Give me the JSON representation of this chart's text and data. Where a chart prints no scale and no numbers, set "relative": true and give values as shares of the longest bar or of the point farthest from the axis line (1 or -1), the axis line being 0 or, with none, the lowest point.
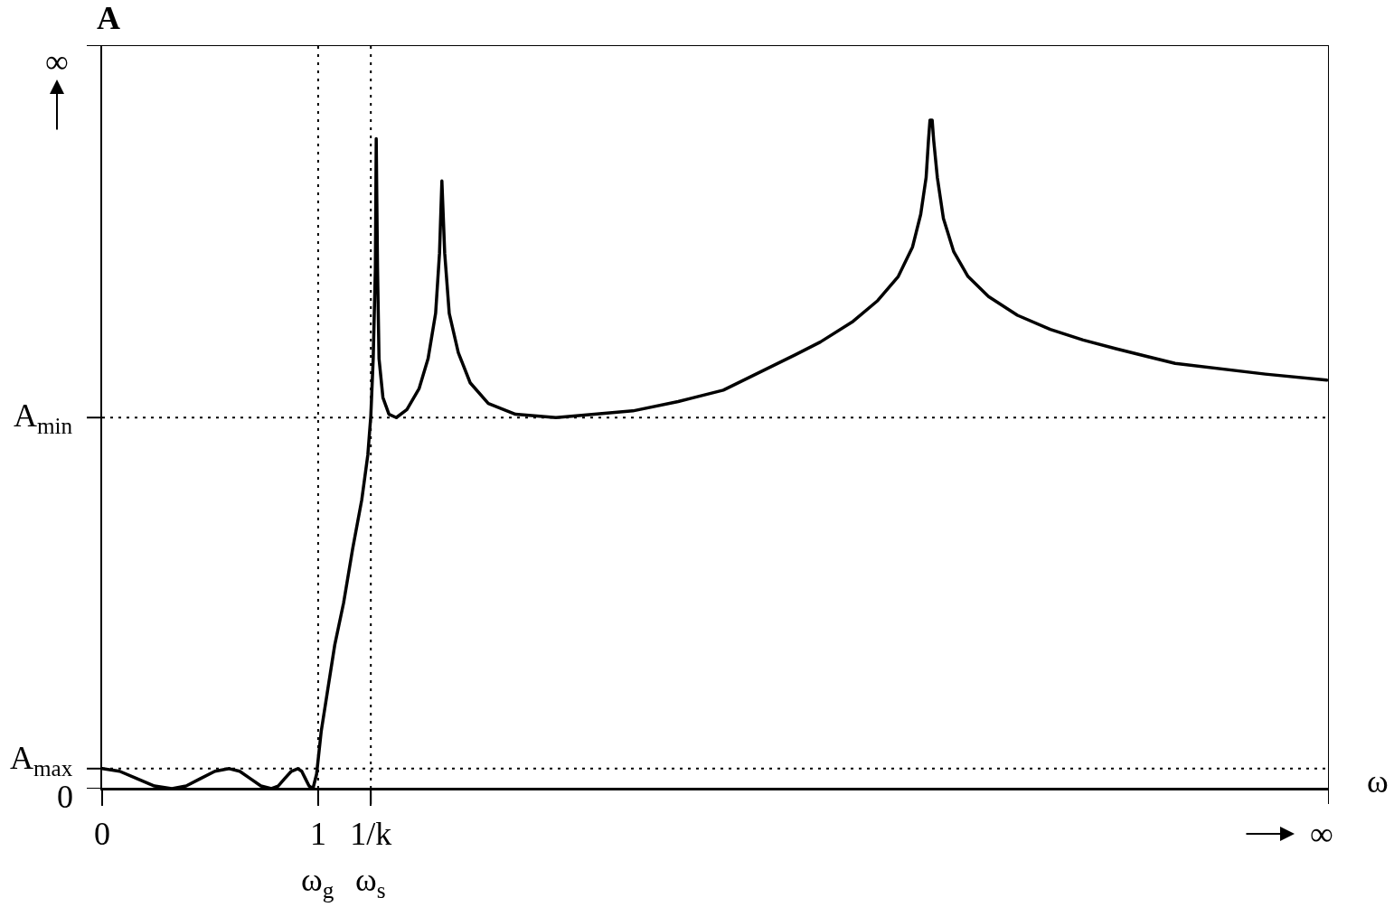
{
  "chart_data": {
    "type": "line",
    "relative": true,
    "tick_labels": "x",
    "xlabel": "ω",
    "ylabel": "A",
    "x": [
      0,
      0.081,
      0.161,
      0.242,
      0.323,
      0.389,
      0.455,
      0.522,
      0.588,
      0.637,
      0.686,
      0.735,
      0.784,
      0.815,
      0.845,
      0.876,
      0.906,
      0.924,
      0.941,
      0.958,
      0.976,
      0.993,
      1.014,
      1.042,
      1.077,
      1.118,
      1.16,
      1.202,
      1.23,
      1.244,
      1.255,
      1.265,
      1.269,
      1.275,
      1.282,
      1.3,
      1.328,
      1.362,
      1.411,
      1.467,
      1.509,
      1.544,
      1.562,
      1.573,
      1.586,
      1.607,
      1.649,
      1.704,
      1.788,
      1.914,
      2.101,
      2.457,
      2.667,
      2.876,
      3.21,
      3.325,
      3.477,
      3.591,
      3.686,
      3.752,
      3.79,
      3.815,
      3.826,
      3.833,
      3.843,
      3.85,
      3.867,
      3.895,
      3.943,
      4.009,
      4.104,
      4.238,
      4.39,
      4.542,
      4.694,
      4.968,
      5.386,
      5.67
    ],
    "series": [
      {
        "color": "#000000",
        "values": [
          0.03,
          0.026,
          0.015,
          0.004,
          0,
          0.004,
          0.015,
          0.026,
          0.03,
          0.026,
          0.015,
          0.004,
          0,
          0.004,
          0.015,
          0.026,
          0.03,
          0.026,
          0.015,
          0.004,
          0,
          0.022,
          0.085,
          0.143,
          0.215,
          0.278,
          0.359,
          0.432,
          0.499,
          0.558,
          0.643,
          0.778,
          0.972,
          0.778,
          0.643,
          0.585,
          0.56,
          0.555,
          0.567,
          0.598,
          0.643,
          0.711,
          0.801,
          0.909,
          0.801,
          0.711,
          0.652,
          0.607,
          0.576,
          0.56,
          0.555,
          0.565,
          0.579,
          0.596,
          0.649,
          0.668,
          0.699,
          0.73,
          0.766,
          0.81,
          0.859,
          0.914,
          0.97,
          1.0,
          1.0,
          0.97,
          0.914,
          0.853,
          0.803,
          0.766,
          0.736,
          0.708,
          0.687,
          0.671,
          0.658,
          0.636,
          0.62,
          0.611
        ]
      }
    ],
    "xlim": [
      0,
      5.68
    ],
    "xticks": [
      0,
      1,
      {
        "value": 1.244,
        "label": "1/k"
      }
    ],
    "ref_lines": [
      {
        "axis": "y",
        "value": 0,
        "label": "0",
        "line_style": "solid"
      },
      {
        "axis": "y",
        "value": 0.03,
        "label": "A$_{max}$",
        "line_style": "dotted"
      },
      {
        "axis": "y",
        "value": 0.555,
        "label": "A$_{min}$",
        "line_style": "dotted"
      },
      {
        "axis": "y",
        "value": 1.112,
        "label": "∞",
        "line_style": "solid"
      },
      {
        "axis": "x",
        "value": 1,
        "label": "ω$_{g}$",
        "line_style": "dotted"
      },
      {
        "axis": "x",
        "value": 1.244,
        "label": "ω$_{s}$",
        "line_style": "dotted"
      },
      {
        "axis": "x",
        "value": 5.68,
        "label": "∞",
        "line_style": "solid"
      }
    ]
  }
}
